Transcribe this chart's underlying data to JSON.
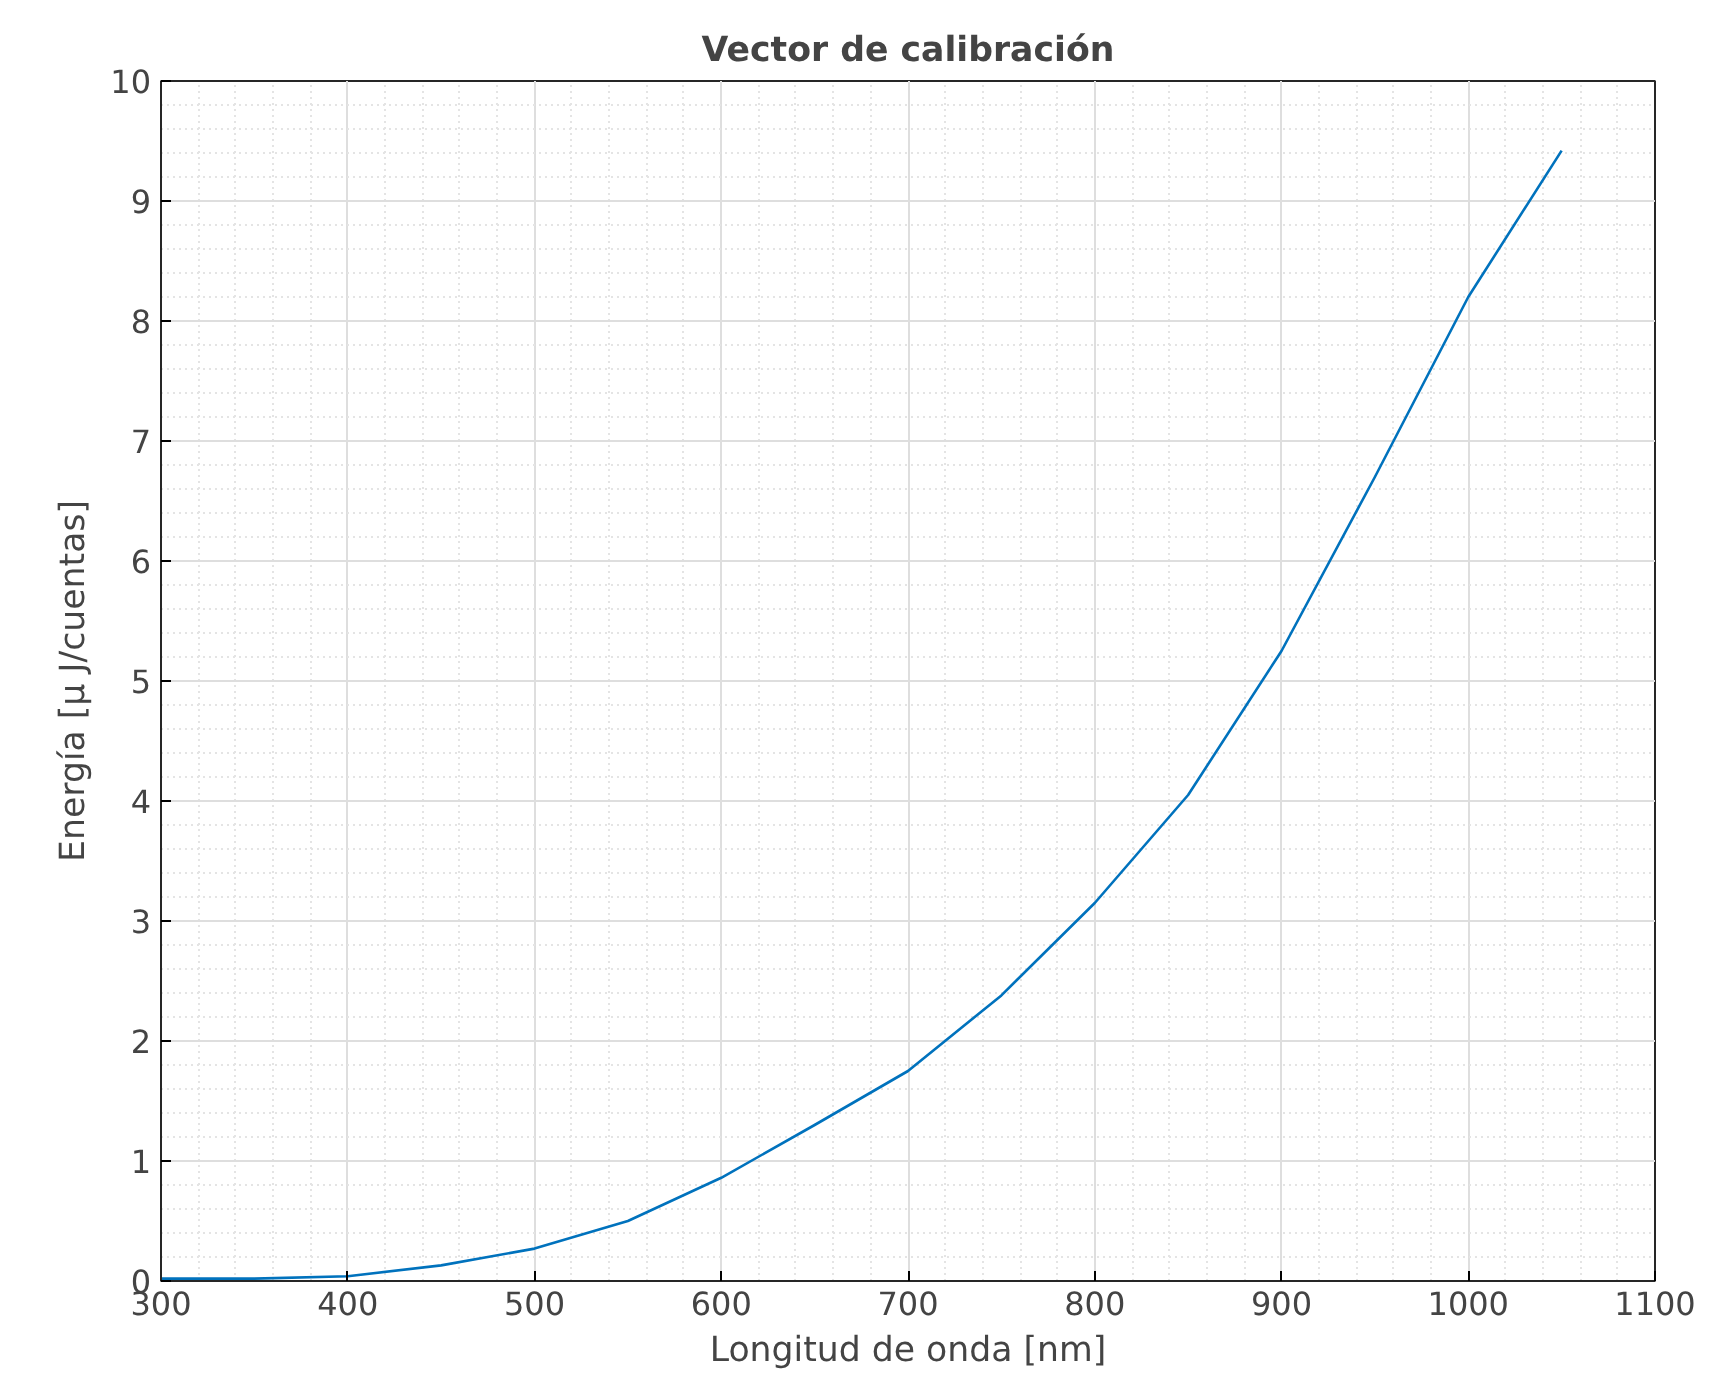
{
  "chart_data": {
    "type": "line",
    "title": "Vector de calibración",
    "xlabel": "Longitud de onda [nm]",
    "ylabel": "Energía [μ J/cuentas]",
    "x": [
      300,
      350,
      400,
      450,
      500,
      550,
      600,
      650,
      700,
      750,
      800,
      850,
      900,
      950,
      1000,
      1050
    ],
    "series": [
      {
        "color": "#0072bd",
        "values": [
          0.02,
          0.02,
          0.04,
          0.13,
          0.27,
          0.5,
          0.86,
          1.3,
          1.75,
          2.38,
          3.15,
          4.05,
          5.25,
          6.7,
          8.2,
          9.42
        ]
      }
    ],
    "xlim": [
      300,
      1100
    ],
    "xticks": [
      300,
      400,
      500,
      600,
      700,
      800,
      900,
      1000,
      1100
    ],
    "ylim": [
      0,
      10
    ],
    "yticks": [
      0,
      1,
      2,
      3,
      4,
      5,
      6,
      7,
      8,
      9,
      10
    ],
    "grid": true,
    "line_style": "solid",
    "marker": "none"
  }
}
